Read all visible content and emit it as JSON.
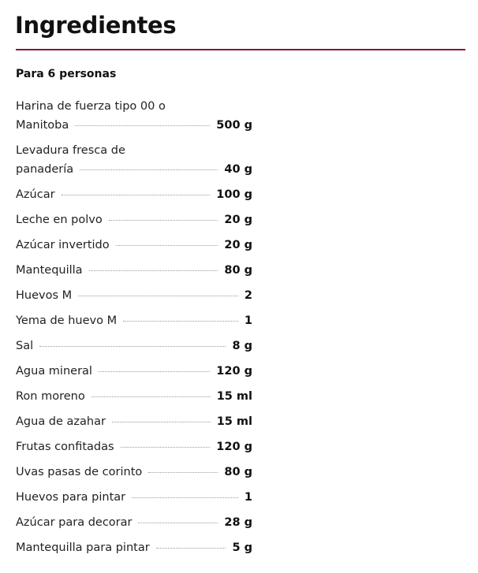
{
  "title": "Ingredientes",
  "servings": "Para 6 personas",
  "accent_color": "#8a1538",
  "ingredients": [
    {
      "line1": "Harina de fuerza tipo 00 o",
      "name": "Manitoba",
      "qty": "500 g"
    },
    {
      "line1": "Levadura fresca de",
      "name": "panadería",
      "qty": "40 g"
    },
    {
      "line1": "",
      "name": "Azúcar",
      "qty": "100 g"
    },
    {
      "line1": "",
      "name": "Leche en polvo",
      "qty": "20 g"
    },
    {
      "line1": "",
      "name": "Azúcar invertido",
      "qty": "20 g"
    },
    {
      "line1": "",
      "name": "Mantequilla",
      "qty": "80 g"
    },
    {
      "line1": "",
      "name": "Huevos M",
      "qty": "2"
    },
    {
      "line1": "",
      "name": "Yema de huevo M",
      "qty": "1"
    },
    {
      "line1": "",
      "name": "Sal",
      "qty": "8 g"
    },
    {
      "line1": "",
      "name": "Agua mineral",
      "qty": "120 g"
    },
    {
      "line1": "",
      "name": "Ron moreno",
      "qty": "15 ml"
    },
    {
      "line1": "",
      "name": "Agua de azahar",
      "qty": "15 ml"
    },
    {
      "line1": "",
      "name": "Frutas confitadas",
      "qty": "120 g"
    },
    {
      "line1": "",
      "name": "Uvas pasas de corinto",
      "qty": "80 g"
    },
    {
      "line1": "",
      "name": "Huevos para pintar",
      "qty": "1"
    },
    {
      "line1": "",
      "name": "Azúcar para decorar",
      "qty": "28 g"
    },
    {
      "line1": "",
      "name": "Mantequilla para pintar",
      "qty": "5 g"
    }
  ]
}
